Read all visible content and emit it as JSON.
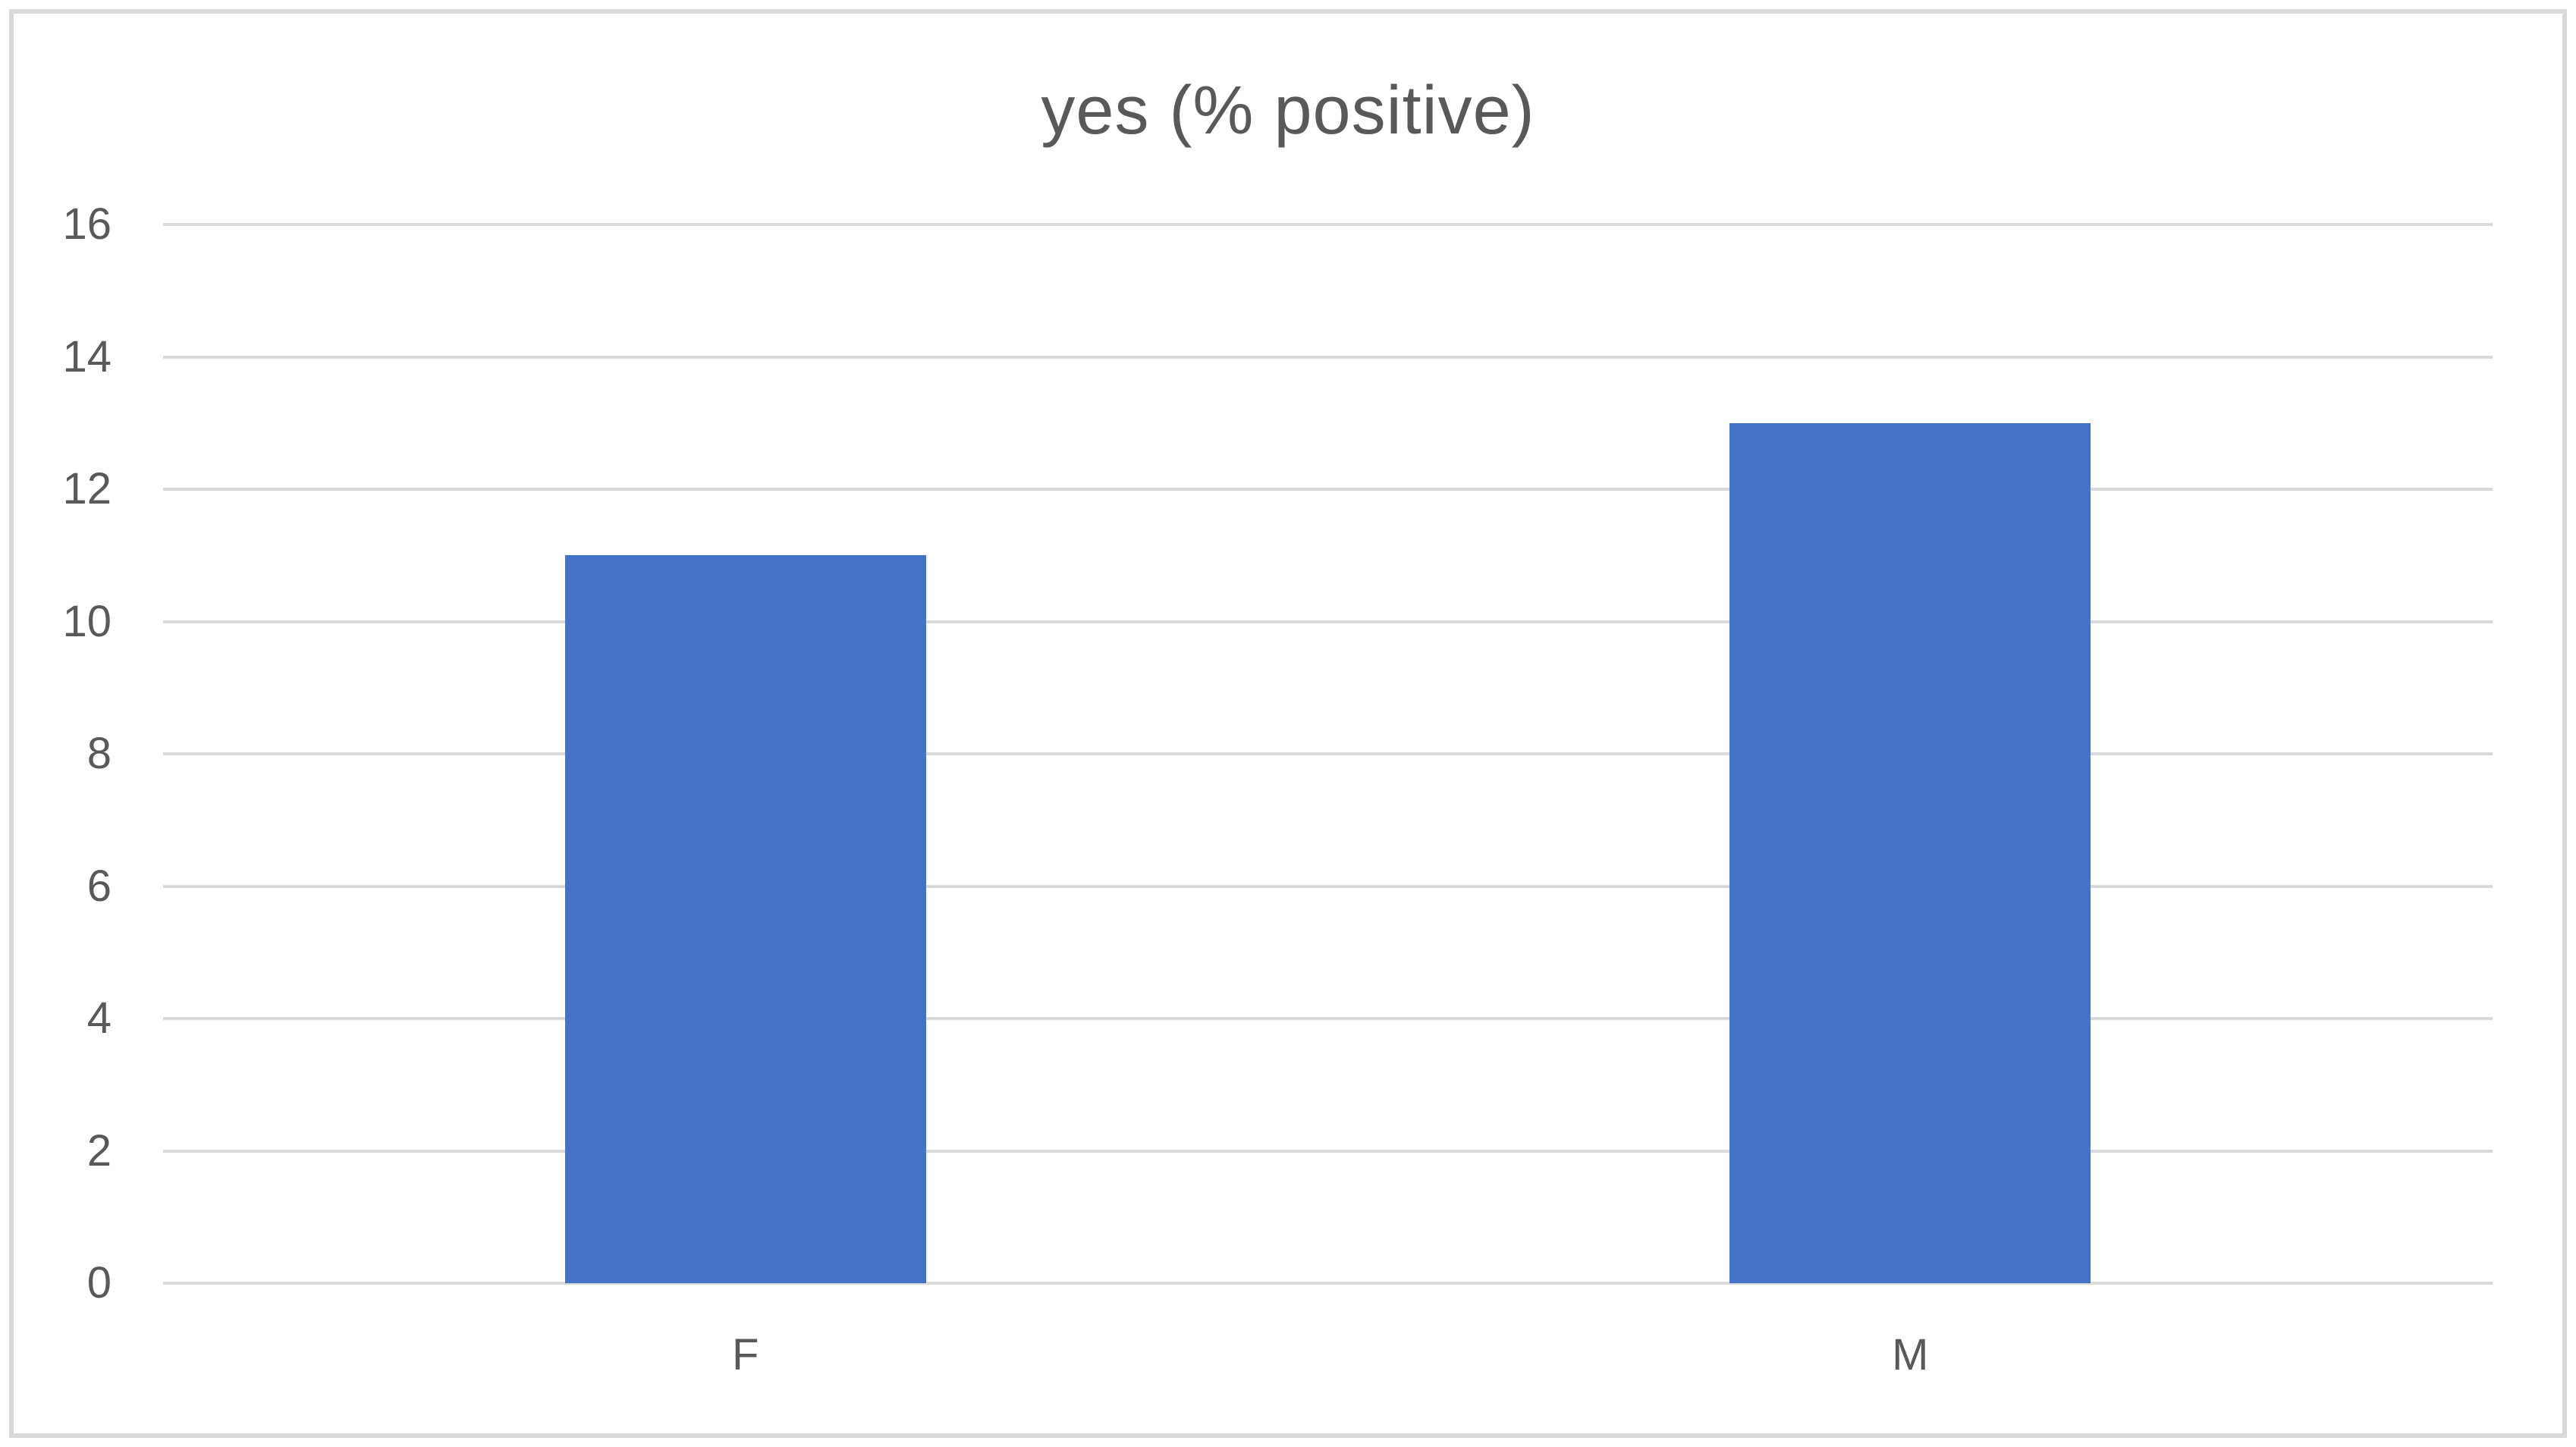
{
  "chart_data": {
    "type": "bar",
    "title": "yes (% positive)",
    "categories": [
      "F",
      "M"
    ],
    "values": [
      11,
      13
    ],
    "xlabel": "",
    "ylabel": "",
    "ylim": [
      0,
      16
    ],
    "yticks": [
      0,
      2,
      4,
      6,
      8,
      10,
      12,
      14,
      16
    ],
    "grid": true,
    "legend_position": "none",
    "colors": {
      "bar": "#4472C4",
      "gridline": "#D9D9D9",
      "frame_border": "#D9D9D9",
      "text": "#595959",
      "background": "#FFFFFF"
    }
  }
}
